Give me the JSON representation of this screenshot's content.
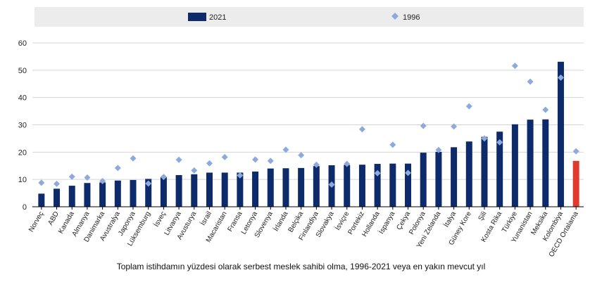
{
  "chart_data": {
    "type": "bar",
    "caption": "Toplam istihdamın yüzdesi olarak serbest meslek sahibi olma, 1996-2021 veya en yakın mevcut yıl",
    "legend": [
      {
        "name": "2021",
        "marker": "bar",
        "color": "#0d2a6b"
      },
      {
        "name": "1996",
        "marker": "diamond",
        "color": "#8ea9dc"
      }
    ],
    "categories": [
      "Norveç",
      "ABD",
      "Kanada",
      "Almanya",
      "Danimarka",
      "Avustralya",
      "Japonya",
      "Lüksemburg",
      "İsveç",
      "Litvanya",
      "Avusturya",
      "İsrail",
      "Macaristan",
      "Fransa",
      "Letonya",
      "Slovenya",
      "İrlanda",
      "Belçika",
      "Finlandiya",
      "Slovakya",
      "İsviçre",
      "Portekiz",
      "Hollanda",
      "İspanya",
      "Çekya",
      "Polonya",
      "Yeni Zelanda",
      "İtalya",
      "Güney Kore",
      "Şili",
      "Kosta Rika",
      "Türkiye",
      "Yunanistan",
      "Meksika",
      "Kolombiya",
      "OECD Ortalama"
    ],
    "series": [
      {
        "name": "2021",
        "values": [
          4.8,
          6.6,
          7.7,
          8.7,
          8.9,
          9.6,
          9.8,
          10.2,
          10.8,
          11.6,
          11.9,
          12.5,
          12.5,
          12.5,
          12.9,
          14.0,
          14.1,
          14.2,
          14.9,
          15.2,
          15.3,
          15.4,
          15.7,
          15.8,
          15.8,
          19.8,
          20.1,
          21.8,
          23.9,
          25.6,
          27.5,
          30.2,
          31.9,
          32.0,
          53.1,
          16.8
        ]
      },
      {
        "name": "1996",
        "values": [
          8.8,
          8.4,
          11.0,
          10.7,
          9.4,
          14.2,
          17.7,
          8.5,
          10.9,
          17.2,
          13.3,
          15.9,
          18.2,
          11.5,
          17.3,
          16.8,
          20.9,
          18.9,
          15.4,
          8.1,
          15.7,
          28.4,
          12.3,
          22.7,
          12.4,
          29.6,
          20.8,
          29.4,
          36.8,
          25.0,
          23.6,
          51.6,
          45.8,
          35.5,
          47.3,
          20.3
        ]
      }
    ],
    "highlight": {
      "index": 35,
      "color": "#e03a2f"
    },
    "ylim": [
      0,
      60
    ],
    "yticks": [
      0,
      10,
      20,
      30,
      40,
      50,
      60
    ],
    "xlabel": "",
    "ylabel": ""
  }
}
